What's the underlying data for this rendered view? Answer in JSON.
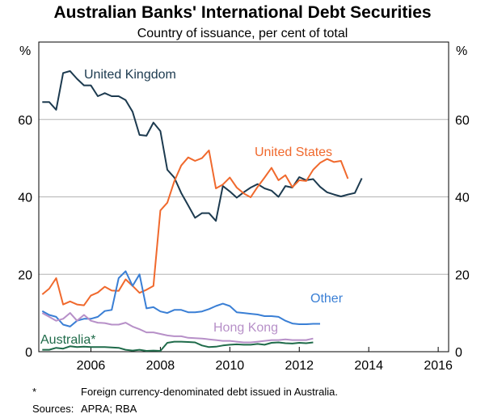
{
  "chart_data": {
    "type": "line",
    "title": "Australian Banks' International Debt Securities",
    "subtitle": "Country of issuance, per cent of total",
    "y_unit_left": "%",
    "y_unit_right": "%",
    "ylim": [
      0,
      80
    ],
    "yticks": [
      0,
      20,
      40,
      60
    ],
    "xlim": [
      2004.5,
      2016.3
    ],
    "xticks": [
      2006,
      2008,
      2010,
      2012,
      2014,
      2016
    ],
    "grid": true,
    "series": [
      {
        "name": "United Kingdom",
        "color": "#1c3a4f",
        "x": [
          2004.6,
          2004.8,
          2005.0,
          2005.2,
          2005.4,
          2005.6,
          2005.8,
          2006.0,
          2006.2,
          2006.4,
          2006.6,
          2006.8,
          2007.0,
          2007.2,
          2007.4,
          2007.6,
          2007.8,
          2008.0,
          2008.2,
          2008.4,
          2008.6,
          2008.8,
          2009.0,
          2009.2,
          2009.4,
          2009.6,
          2009.8,
          2010.0,
          2010.2,
          2010.4,
          2010.6,
          2010.8,
          2011.0,
          2011.2,
          2011.4,
          2011.6,
          2011.8,
          2012.0,
          2012.2,
          2012.4,
          2012.6,
          2012.8,
          2013.0,
          2013.2,
          2013.4,
          2013.6,
          2013.8,
          2014.0,
          2014.2,
          2014.4,
          2014.6,
          2014.8,
          2015.0,
          2015.2,
          2015.4,
          2015.6
        ],
        "values": [
          64.5,
          64.5,
          62.5,
          72,
          72.5,
          70.5,
          68.8,
          68.8,
          66,
          66.8,
          66,
          66,
          65,
          62,
          56,
          55.8,
          59.2,
          57,
          47,
          45,
          41,
          37.8,
          34.6,
          35.8,
          35.8,
          33.8,
          42.8,
          41.4,
          39.8,
          41.2,
          42.4,
          43.3,
          42.2,
          41.6,
          40,
          42.8,
          42.4,
          45.1,
          44.3,
          44.6,
          42.6,
          41.2,
          40.6,
          40.1,
          40.6,
          41,
          44.8,
          null,
          null,
          null,
          null,
          null,
          null,
          null,
          null,
          null
        ]
      },
      {
        "name": "United States",
        "color": "#f0692d",
        "x": [
          2004.6,
          2004.8,
          2005.0,
          2005.2,
          2005.4,
          2005.6,
          2005.8,
          2006.0,
          2006.2,
          2006.4,
          2006.6,
          2006.8,
          2007.0,
          2007.2,
          2007.4,
          2007.6,
          2007.8,
          2008.0,
          2008.2,
          2008.4,
          2008.6,
          2008.8,
          2009.0,
          2009.2,
          2009.4,
          2009.6,
          2009.8,
          2010.0,
          2010.2,
          2010.4,
          2010.6,
          2010.8,
          2011.0,
          2011.2,
          2011.4,
          2011.6,
          2011.8,
          2012.0,
          2012.2,
          2012.4,
          2012.6,
          2012.8,
          2013.0,
          2013.2,
          2013.4,
          2013.6,
          2013.8,
          2014.0,
          2014.2,
          2014.4,
          2014.6,
          2014.8,
          2015.0,
          2015.2,
          2015.4,
          2015.6
        ],
        "values": [
          14.8,
          16.3,
          19,
          12.2,
          13,
          12.2,
          12,
          14.5,
          15.3,
          16.8,
          15.8,
          15.7,
          18.7,
          17,
          15.2,
          16,
          17,
          36.5,
          38.5,
          44,
          48.1,
          50.2,
          49.3,
          50,
          52,
          42.2,
          43.2,
          45,
          42.4,
          40.9,
          39.9,
          42.6,
          45,
          47.5,
          44.3,
          45.6,
          42.5,
          44.3,
          44.1,
          47,
          48.8,
          49.8,
          49,
          49.3,
          44.7,
          null,
          null,
          null,
          null,
          null,
          null,
          null,
          null,
          null,
          null,
          null
        ]
      },
      {
        "name": "Other",
        "color": "#3a7fd5",
        "x": [
          2004.6,
          2004.8,
          2005.0,
          2005.2,
          2005.4,
          2005.6,
          2005.8,
          2006.0,
          2006.2,
          2006.4,
          2006.6,
          2006.8,
          2007.0,
          2007.2,
          2007.4,
          2007.6,
          2007.8,
          2008.0,
          2008.2,
          2008.4,
          2008.6,
          2008.8,
          2009.0,
          2009.2,
          2009.4,
          2009.6,
          2009.8,
          2010.0,
          2010.2,
          2010.4,
          2010.6,
          2010.8,
          2011.0,
          2011.2,
          2011.4,
          2011.6,
          2011.8,
          2012.0,
          2012.2,
          2012.4,
          2012.6,
          2012.8,
          2013.0,
          2013.2,
          2013.4,
          2013.6,
          2013.8,
          2014.0,
          2014.2,
          2014.4,
          2014.6,
          2014.8,
          2015.0,
          2015.2,
          2015.4,
          2015.6
        ],
        "values": [
          10.5,
          9.5,
          9,
          7,
          6.5,
          8,
          8.5,
          8.5,
          9,
          10.5,
          10.8,
          19,
          20.8,
          17,
          20,
          11.2,
          11.5,
          10.4,
          10,
          10.8,
          10.8,
          10.2,
          10.2,
          10.4,
          11,
          11.8,
          12.4,
          11.8,
          10.2,
          10,
          9.8,
          9.6,
          9.2,
          9.2,
          9,
          8,
          7.3,
          7.1,
          7.1,
          7.2,
          7.2,
          null,
          null,
          null,
          null,
          null,
          null,
          null,
          null,
          null,
          null,
          null,
          null,
          null,
          null,
          null
        ]
      },
      {
        "name": "Hong Kong",
        "color": "#b790c8",
        "x": [
          2004.6,
          2004.8,
          2005.0,
          2005.2,
          2005.4,
          2005.6,
          2005.8,
          2006.0,
          2006.2,
          2006.4,
          2006.6,
          2006.8,
          2007.0,
          2007.2,
          2007.4,
          2007.6,
          2007.8,
          2008.0,
          2008.2,
          2008.4,
          2008.6,
          2008.8,
          2009.0,
          2009.2,
          2009.4,
          2009.6,
          2009.8,
          2010.0,
          2010.2,
          2010.4,
          2010.6,
          2010.8,
          2011.0,
          2011.2,
          2011.4,
          2011.6,
          2011.8,
          2012.0,
          2012.2,
          2012.4,
          2012.6,
          2012.8,
          2013.0,
          2013.2,
          2013.4,
          2013.6,
          2013.8,
          2014.0,
          2014.2,
          2014.4,
          2014.6,
          2014.8,
          2015.0,
          2015.2,
          2015.4,
          2015.6
        ],
        "values": [
          10,
          9,
          8,
          8.5,
          10,
          8,
          9.5,
          8,
          7.5,
          7.4,
          7,
          7,
          7.5,
          6.5,
          5.8,
          5,
          5,
          4.6,
          4.2,
          4,
          4,
          3.6,
          3.5,
          3.4,
          3.2,
          3,
          2.8,
          2.8,
          2.6,
          2.4,
          2.4,
          2.6,
          2.8,
          3,
          3,
          3.2,
          3,
          3,
          3,
          3.4,
          null,
          null,
          null,
          null,
          null,
          null,
          null,
          null,
          null,
          null,
          null,
          null,
          null,
          null,
          null,
          null
        ]
      },
      {
        "name": "Australia*",
        "color": "#1f6b4a",
        "x": [
          2004.6,
          2004.8,
          2005.0,
          2005.2,
          2005.4,
          2005.6,
          2005.8,
          2006.0,
          2006.2,
          2006.4,
          2006.6,
          2006.8,
          2007.0,
          2007.2,
          2007.4,
          2007.6,
          2007.8,
          2008.0,
          2008.2,
          2008.4,
          2008.6,
          2008.8,
          2009.0,
          2009.2,
          2009.4,
          2009.6,
          2009.8,
          2010.0,
          2010.2,
          2010.4,
          2010.6,
          2010.8,
          2011.0,
          2011.2,
          2011.4,
          2011.6,
          2011.8,
          2012.0,
          2012.2,
          2012.4,
          2012.6,
          2012.8,
          2013.0,
          2013.2,
          2013.4,
          2013.6,
          2013.8,
          2014.0,
          2014.2,
          2014.4,
          2014.6,
          2014.8,
          2015.0,
          2015.2,
          2015.4,
          2015.6
        ],
        "values": [
          0.5,
          0.5,
          1,
          0.8,
          1.4,
          1.2,
          1.3,
          1.2,
          1.2,
          1.2,
          1.1,
          1,
          0.5,
          0.3,
          0.5,
          0.2,
          0.3,
          0.2,
          2.3,
          2.6,
          2.6,
          2.5,
          2.4,
          1.6,
          1.2,
          1.3,
          1.6,
          1.8,
          1.9,
          1.8,
          1.8,
          2,
          1.8,
          2.3,
          2.4,
          2.2,
          2.1,
          2.3,
          2.2,
          2.4,
          null,
          null,
          null,
          null,
          null,
          null,
          null,
          null,
          null,
          null,
          null,
          null,
          null,
          null,
          null,
          null
        ]
      }
    ],
    "series_labels": [
      "United Kingdom",
      "United States",
      "Other",
      "Hong Kong",
      "Australia*"
    ]
  },
  "footnote": {
    "marker": "*",
    "text": "Foreign currency-denominated debt issued in Australia."
  },
  "sources": {
    "label": "Sources:",
    "text": "APRA; RBA"
  }
}
